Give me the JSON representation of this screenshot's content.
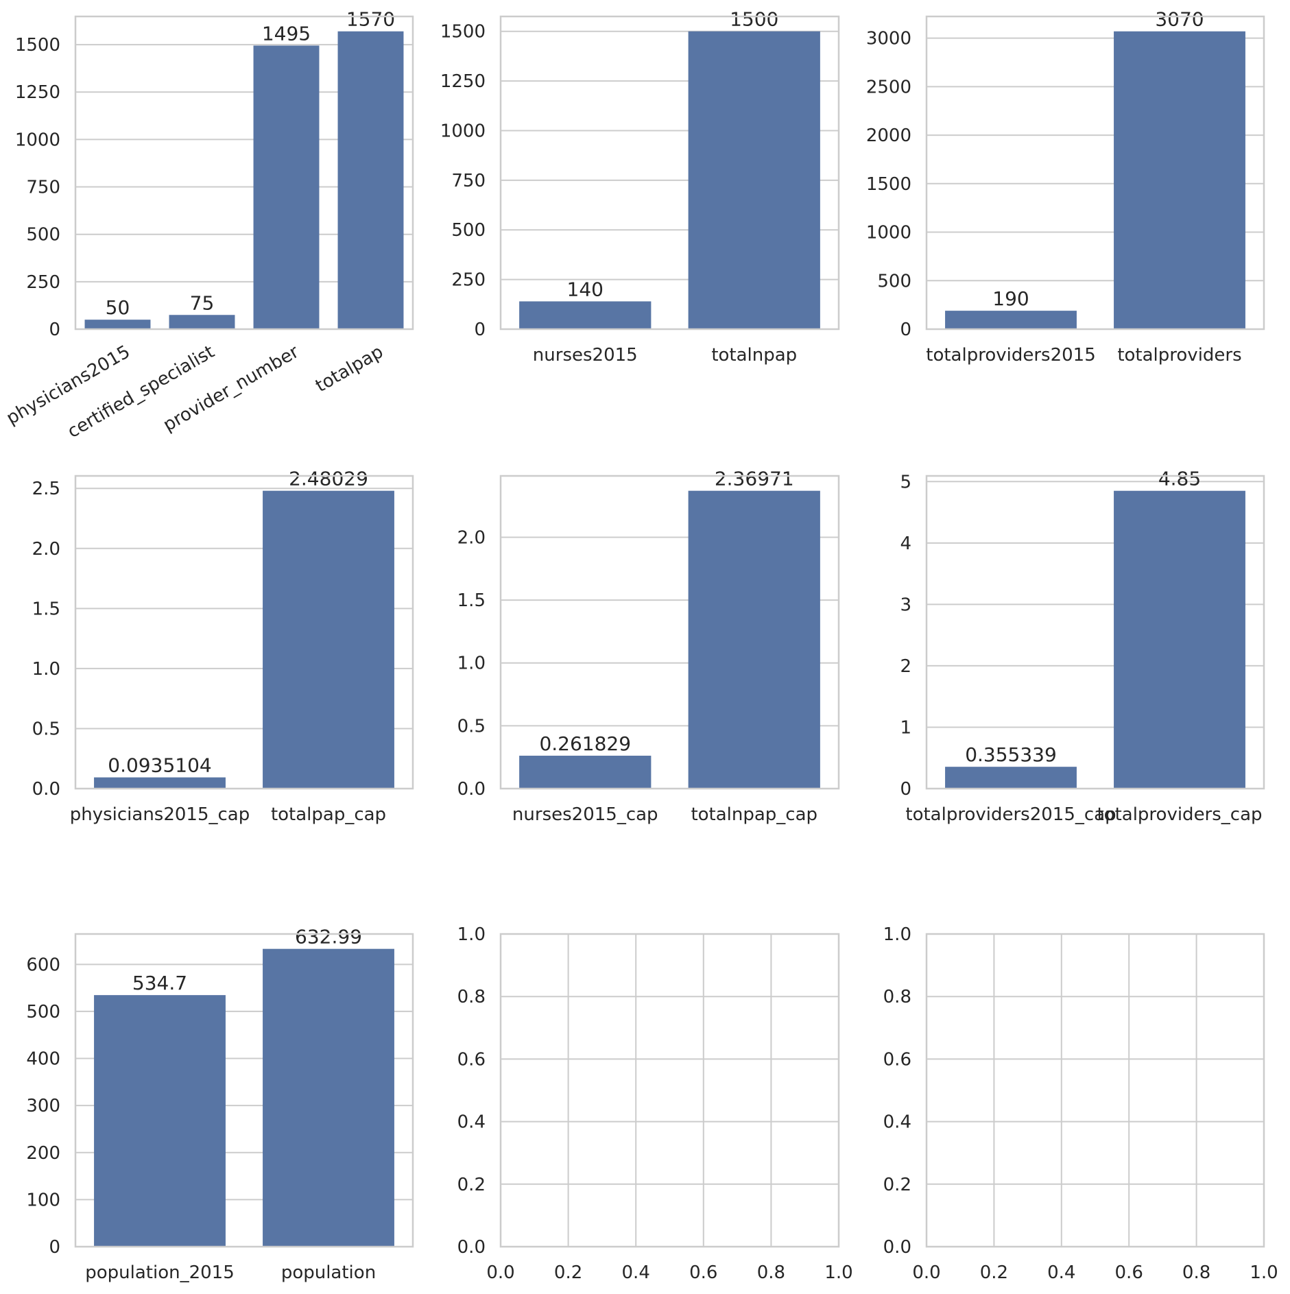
{
  "colors": {
    "bar": "#5875a4",
    "grid": "#cccccc",
    "text": "#262626",
    "background": "#ffffff"
  },
  "chart_data": [
    {
      "type": "bar",
      "categories": [
        "physicians2015",
        "certified_specialist",
        "provider_number",
        "totalpap"
      ],
      "values": [
        50,
        75,
        1495,
        1570
      ],
      "value_labels": [
        "50",
        "75",
        "1495",
        "1570"
      ],
      "ylim": [
        0,
        1648.5
      ],
      "yticks": [
        0,
        250,
        500,
        750,
        1000,
        1250,
        1500
      ],
      "ytick_labels": [
        "0",
        "250",
        "500",
        "750",
        "1000",
        "1250",
        "1500"
      ],
      "xtick_rotation": 30,
      "grid": true,
      "title": "",
      "xlabel": "",
      "ylabel": ""
    },
    {
      "type": "bar",
      "categories": [
        "nurses2015",
        "totalnpap"
      ],
      "values": [
        140,
        1500
      ],
      "value_labels": [
        "140",
        "1500"
      ],
      "ylim": [
        0,
        1575
      ],
      "yticks": [
        0,
        250,
        500,
        750,
        1000,
        1250,
        1500
      ],
      "ytick_labels": [
        "0",
        "250",
        "500",
        "750",
        "1000",
        "1250",
        "1500"
      ],
      "grid": true,
      "title": "",
      "xlabel": "",
      "ylabel": ""
    },
    {
      "type": "bar",
      "categories": [
        "totalproviders2015",
        "totalproviders"
      ],
      "values": [
        190,
        3070
      ],
      "value_labels": [
        "190",
        "3070"
      ],
      "ylim": [
        0,
        3223.5
      ],
      "yticks": [
        0,
        500,
        1000,
        1500,
        2000,
        2500,
        3000
      ],
      "ytick_labels": [
        "0",
        "500",
        "1000",
        "1500",
        "2000",
        "2500",
        "3000"
      ],
      "grid": true,
      "title": "",
      "xlabel": "",
      "ylabel": ""
    },
    {
      "type": "bar",
      "categories": [
        "physicians2015_cap",
        "totalpap_cap"
      ],
      "values": [
        0.0935104,
        2.48029
      ],
      "value_labels": [
        "0.0935104",
        "2.48029"
      ],
      "ylim": [
        0,
        2.604
      ],
      "yticks": [
        0,
        0.5,
        1.0,
        1.5,
        2.0,
        2.5
      ],
      "ytick_labels": [
        "0.0",
        "0.5",
        "1.0",
        "1.5",
        "2.0",
        "2.5"
      ],
      "grid": true,
      "title": "",
      "xlabel": "",
      "ylabel": ""
    },
    {
      "type": "bar",
      "categories": [
        "nurses2015_cap",
        "totalnpap_cap"
      ],
      "values": [
        0.261829,
        2.36971
      ],
      "value_labels": [
        "0.261829",
        "2.36971"
      ],
      "ylim": [
        0,
        2.488
      ],
      "yticks": [
        0,
        0.5,
        1.0,
        1.5,
        2.0
      ],
      "ytick_labels": [
        "0.0",
        "0.5",
        "1.0",
        "1.5",
        "2.0"
      ],
      "grid": true,
      "title": "",
      "xlabel": "",
      "ylabel": ""
    },
    {
      "type": "bar",
      "categories": [
        "totalproviders2015_cap",
        "totalproviders_cap"
      ],
      "values": [
        0.355339,
        4.85
      ],
      "value_labels": [
        "0.355339",
        "4.85"
      ],
      "ylim": [
        0,
        5.0925
      ],
      "yticks": [
        0,
        1,
        2,
        3,
        4,
        5
      ],
      "ytick_labels": [
        "0",
        "1",
        "2",
        "3",
        "4",
        "5"
      ],
      "grid": true,
      "title": "",
      "xlabel": "",
      "ylabel": ""
    },
    {
      "type": "bar",
      "categories": [
        "population_2015",
        "population"
      ],
      "values": [
        534.7,
        632.99
      ],
      "value_labels": [
        "534.7",
        "632.99"
      ],
      "ylim": [
        0,
        664.6
      ],
      "yticks": [
        0,
        100,
        200,
        300,
        400,
        500,
        600
      ],
      "ytick_labels": [
        "0",
        "100",
        "200",
        "300",
        "400",
        "500",
        "600"
      ],
      "grid": true,
      "title": "",
      "xlabel": "",
      "ylabel": ""
    },
    {
      "type": "empty",
      "xlim": [
        0,
        1
      ],
      "ylim": [
        0,
        1
      ],
      "xticks": [
        0,
        0.2,
        0.4,
        0.6,
        0.8,
        1.0
      ],
      "xtick_labels": [
        "0.0",
        "0.2",
        "0.4",
        "0.6",
        "0.8",
        "1.0"
      ],
      "yticks": [
        0,
        0.2,
        0.4,
        0.6,
        0.8,
        1.0
      ],
      "ytick_labels": [
        "0.0",
        "0.2",
        "0.4",
        "0.6",
        "0.8",
        "1.0"
      ],
      "grid": true
    },
    {
      "type": "empty",
      "xlim": [
        0,
        1
      ],
      "ylim": [
        0,
        1
      ],
      "xticks": [
        0,
        0.2,
        0.4,
        0.6,
        0.8,
        1.0
      ],
      "xtick_labels": [
        "0.0",
        "0.2",
        "0.4",
        "0.6",
        "0.8",
        "1.0"
      ],
      "yticks": [
        0,
        0.2,
        0.4,
        0.6,
        0.8,
        1.0
      ],
      "ytick_labels": [
        "0.0",
        "0.2",
        "0.4",
        "0.6",
        "0.8",
        "1.0"
      ],
      "grid": true
    }
  ]
}
